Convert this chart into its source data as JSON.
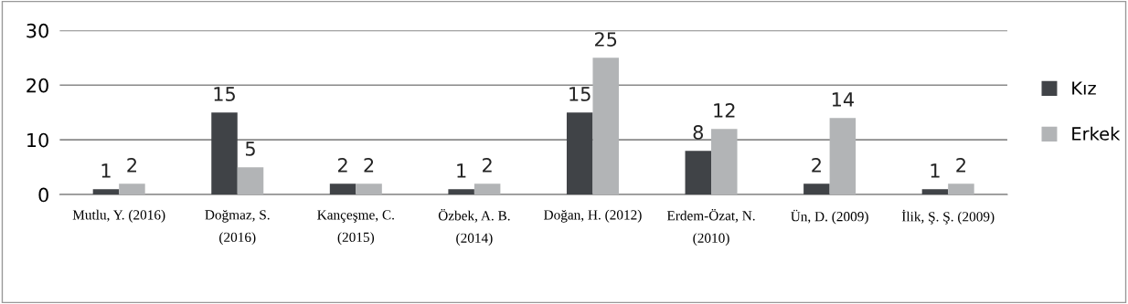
{
  "chart_data": {
    "type": "bar",
    "categories": [
      "Mutlu, Y. (2016)",
      "Doğmaz, S.\n(2016)",
      "Kançeşme, C.\n(2015)",
      "Özbek, A. B.\n(2014)",
      "Doğan, H. (2012)",
      "Erdem-Özat, N.\n(2010)",
      "Ün, D. (2009)",
      "İlik, Ş. Ş. (2009)"
    ],
    "series": [
      {
        "name": "Kız",
        "color": "#404347",
        "values": [
          1,
          15,
          2,
          1,
          15,
          8,
          2,
          1
        ]
      },
      {
        "name": "Erkek",
        "color": "#b2b4b6",
        "values": [
          2,
          5,
          2,
          2,
          25,
          12,
          14,
          2
        ]
      }
    ],
    "ylim": [
      0,
      30
    ],
    "yticks": [
      0,
      10,
      20,
      30
    ],
    "grid": "y",
    "legend": "right",
    "data_labels": true
  }
}
